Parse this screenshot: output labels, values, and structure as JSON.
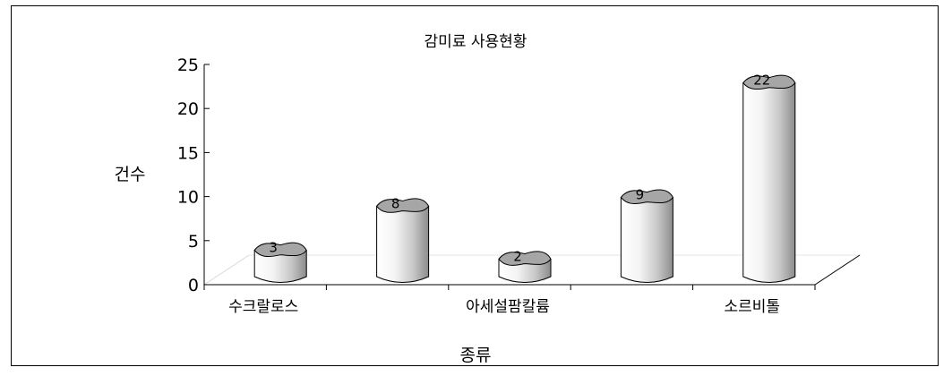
{
  "chart_data": {
    "type": "bar",
    "title": "감미료 사용현황",
    "xlabel": "종류",
    "ylabel": "건수",
    "categories": [
      "수크랄로스",
      "",
      "아세설팜칼륨",
      "",
      "소르비톨"
    ],
    "values": [
      3,
      8,
      2,
      9,
      22
    ],
    "data_labels": [
      "3",
      "8",
      "2",
      "9",
      "22"
    ],
    "ylim": [
      0,
      25
    ],
    "yticks": [
      "0",
      "5",
      "10",
      "15",
      "20",
      "25"
    ],
    "style": "3d-cylinder",
    "grid": false
  }
}
